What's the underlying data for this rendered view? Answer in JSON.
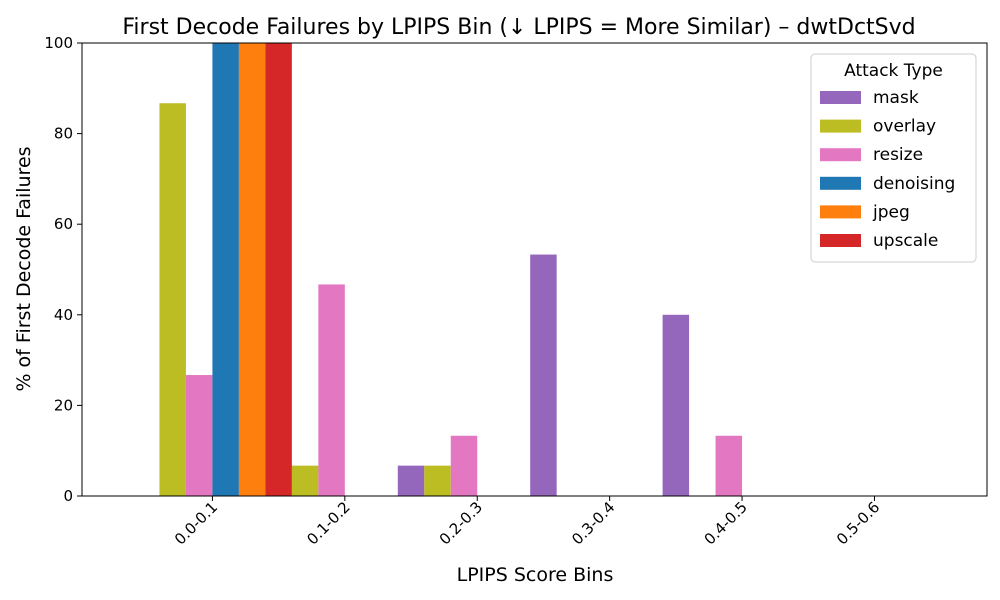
{
  "chart_data": {
    "type": "bar",
    "title": "First Decode Failures by LPIPS Bin (↓ LPIPS = More Similar) – dwtDctSvd",
    "xlabel": "LPIPS Score Bins",
    "ylabel": "% of First Decode Failures",
    "ylim": [
      0,
      100
    ],
    "yticks": [
      "0",
      "20",
      "40",
      "60",
      "80",
      "100"
    ],
    "categories": [
      "0.0-0.1",
      "0.1-0.2",
      "0.2-0.3",
      "0.3-0.4",
      "0.4-0.5",
      "0.5-0.6"
    ],
    "legend_title": "Attack Type",
    "legend_position": "top-right",
    "grid": false,
    "series": [
      {
        "name": "mask",
        "color": "#9467bd",
        "values": [
          0,
          0,
          6.7,
          53.3,
          40.0,
          0
        ]
      },
      {
        "name": "overlay",
        "color": "#bcbd22",
        "values": [
          86.7,
          6.7,
          6.7,
          0,
          0,
          0
        ]
      },
      {
        "name": "resize",
        "color": "#e377c2",
        "values": [
          26.7,
          46.7,
          13.3,
          0,
          13.3,
          0
        ]
      },
      {
        "name": "denoising",
        "color": "#1f77b4",
        "values": [
          100,
          0,
          0,
          0,
          0,
          0
        ]
      },
      {
        "name": "jpeg",
        "color": "#ff7f0e",
        "values": [
          100,
          0,
          0,
          0,
          0,
          0
        ]
      },
      {
        "name": "upscale",
        "color": "#d62728",
        "values": [
          100,
          0,
          0,
          0,
          0,
          0
        ]
      }
    ]
  }
}
